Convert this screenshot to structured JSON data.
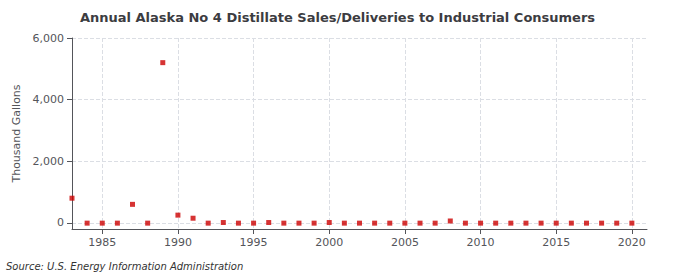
{
  "chart_data": {
    "type": "scatter",
    "title": "Annual Alaska No 4 Distillate Sales/Deliveries to Industrial Consumers",
    "ylabel": "Thousand Gallons",
    "annotations": [
      "Source: U.S. Energy Information Administration"
    ],
    "x": [
      1983,
      1984,
      1985,
      1986,
      1987,
      1988,
      1989,
      1990,
      1991,
      1992,
      1993,
      1994,
      1995,
      1996,
      1997,
      1998,
      1999,
      2000,
      2001,
      2002,
      2003,
      2004,
      2005,
      2006,
      2007,
      2008,
      2009,
      2010,
      2011,
      2012,
      2013,
      2014,
      2015,
      2016,
      2017,
      2018,
      2019,
      2020
    ],
    "values": [
      800,
      -10,
      -10,
      -10,
      600,
      -10,
      5200,
      250,
      150,
      -10,
      10,
      -10,
      -10,
      10,
      -10,
      -10,
      -10,
      10,
      -10,
      -10,
      -10,
      -10,
      -10,
      -10,
      -10,
      60,
      -10,
      -10,
      -10,
      -10,
      -10,
      -10,
      -10,
      -10,
      -10,
      -10,
      -10,
      -10
    ],
    "color": "#cc0000",
    "marker": "square",
    "xlim": [
      1983,
      2021
    ],
    "ylim": [
      -200,
      6000
    ],
    "xticks": [
      1985,
      1990,
      1995,
      2000,
      2005,
      2010,
      2015,
      2020
    ],
    "yticks": [
      0,
      {
        "value": 2000,
        "label": "2,000"
      },
      {
        "value": 4000,
        "label": "4,000"
      },
      {
        "value": 6000,
        "label": "6,000"
      }
    ],
    "grid": true
  }
}
